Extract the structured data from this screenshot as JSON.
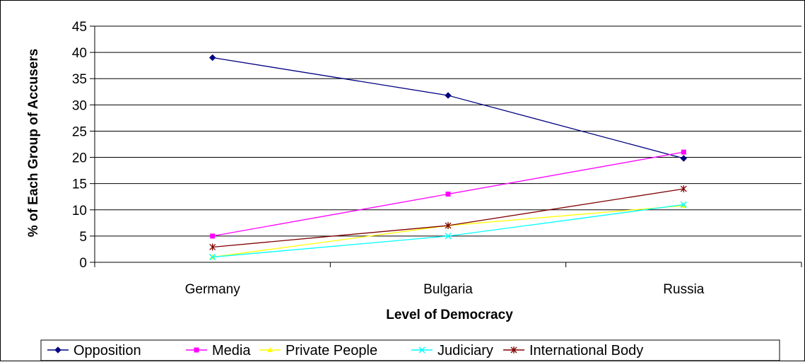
{
  "chart_data": {
    "type": "line",
    "categories": [
      "Germany",
      "Bulgaria",
      "Russia"
    ],
    "xlabel": "Level of Democracy",
    "ylabel": "% of Each Group of Accusers",
    "ylim": [
      0,
      45
    ],
    "yticks": [
      0,
      5,
      10,
      15,
      20,
      25,
      30,
      35,
      40,
      45
    ],
    "grid": true,
    "legend_position": "bottom",
    "series": [
      {
        "name": "Opposition",
        "values": [
          39,
          31.8,
          19.8
        ],
        "color": "#000080",
        "marker": "diamond"
      },
      {
        "name": "Media",
        "values": [
          5,
          13,
          21
        ],
        "color": "#ff00ff",
        "marker": "square"
      },
      {
        "name": "Private People",
        "values": [
          1,
          7,
          10.8
        ],
        "color": "#ffff00",
        "marker": "triangle"
      },
      {
        "name": "Judiciary",
        "values": [
          1,
          5,
          11
        ],
        "color": "#00ffff",
        "marker": "x"
      },
      {
        "name": "International Body",
        "values": [
          2.9,
          7,
          14
        ],
        "color": "#800000",
        "marker": "star"
      }
    ]
  }
}
